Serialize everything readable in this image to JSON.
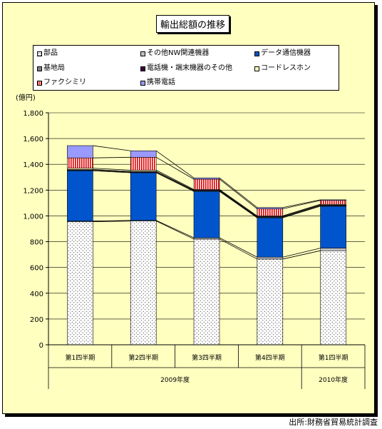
{
  "title": "輸出総額の推移",
  "source_note": "出所:財務省貿易統計調査",
  "chart_data": {
    "type": "bar",
    "stacked": true,
    "title": "輸出総額の推移",
    "ylabel": "(億円)",
    "ylim": [
      0,
      1800
    ],
    "yticks": [
      "0",
      "200",
      "400",
      "600",
      "800",
      "1,000",
      "1,200",
      "1,400",
      "1,600",
      "1,800"
    ],
    "categories": [
      "第1四半期",
      "第2四半期",
      "第3四半期",
      "第4四半期",
      "第1四半期"
    ],
    "year_groups": [
      {
        "label": "2009年度",
        "count": 4
      },
      {
        "label": "2010年度",
        "count": 1
      }
    ],
    "legend_position": "top",
    "series": [
      {
        "name": "部品",
        "color": "#ffffff",
        "pattern": "dots",
        "values": [
          955,
          960,
          820,
          665,
          730
        ]
      },
      {
        "name": "その他NW関連機器",
        "color": "#c0c0c0",
        "values": [
          5,
          5,
          10,
          15,
          20
        ]
      },
      {
        "name": "データ通信機器",
        "color": "#0055cc",
        "values": [
          390,
          370,
          360,
          305,
          325
        ]
      },
      {
        "name": "基地局",
        "color": "#808080",
        "values": [
          5,
          5,
          5,
          5,
          5
        ]
      },
      {
        "name": "電話機・端末機器のその他",
        "color": "#400040",
        "values": [
          5,
          5,
          5,
          5,
          5
        ]
      },
      {
        "name": "コードレスホン",
        "color": "#ffffc0",
        "values": [
          10,
          10,
          5,
          5,
          5
        ]
      },
      {
        "name": "ファクシミリ",
        "color": "#e00000",
        "pattern": "stripes",
        "values": [
          80,
          100,
          80,
          55,
          30
        ]
      },
      {
        "name": "携帯電話",
        "color": "#9999ff",
        "values": [
          95,
          50,
          10,
          10,
          5
        ]
      }
    ]
  }
}
